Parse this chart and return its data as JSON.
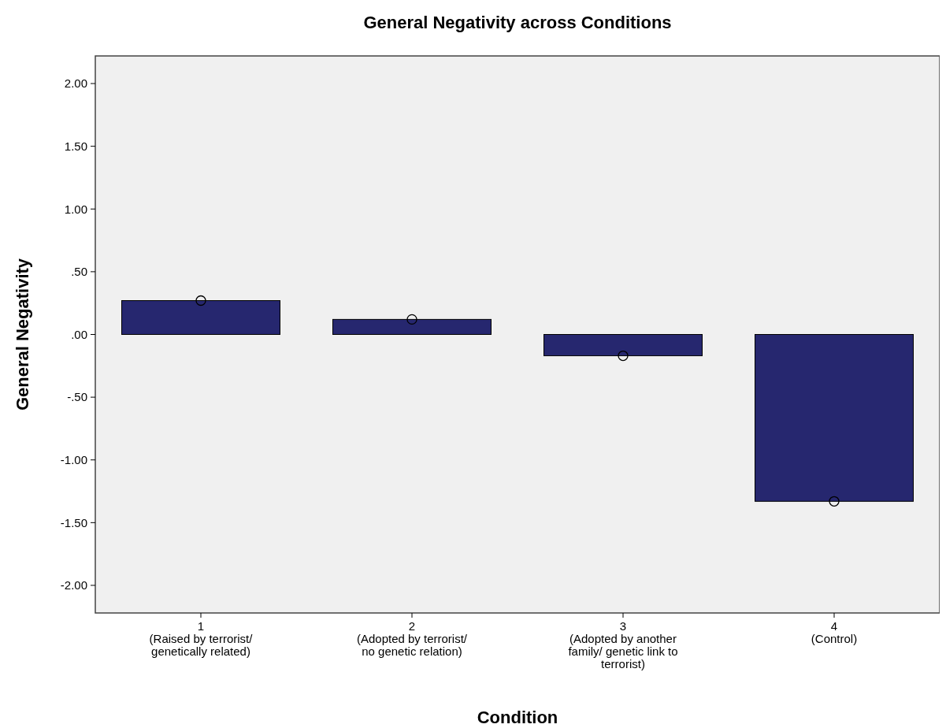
{
  "chart_data": {
    "type": "bar",
    "title": "General Negativity across Conditions",
    "xlabel": "Condition",
    "ylabel": "General Negativity",
    "categories": [
      "1\n(Raised by terrorist/\ngenetically related)",
      "2\n(Adopted by terrorist/\nno genetic relation)",
      "3\n(Adopted by another\nfamily/ genetic link to\nterrorist)",
      "4\n(Control)"
    ],
    "series": [
      {
        "color": "#26276f",
        "values": [
          0.27,
          0.12,
          -0.17,
          -1.33
        ]
      },
      {
        "type": "scatter",
        "color": "#000000",
        "marker": "circle",
        "x": [
          "1\n(Raised by terrorist/\ngenetically related)",
          "2\n(Adopted by terrorist/\nno genetic relation)",
          "3\n(Adopted by another\nfamily/ genetic link to\nterrorist)",
          "4\n(Control)"
        ],
        "values": [
          0.27,
          0.12,
          -0.17,
          -1.33
        ]
      }
    ],
    "ylim": [
      -2.22,
      2.22
    ],
    "yticks": [
      {
        "value": -2,
        "label": "-2.00"
      },
      {
        "value": -1.5,
        "label": "-1.50"
      },
      {
        "value": -1,
        "label": "-1.00"
      },
      {
        "value": -0.5,
        "label": "-.50"
      },
      {
        "value": 0,
        "label": ".00"
      },
      {
        "value": 0.5,
        "label": ".50"
      },
      {
        "value": 1,
        "label": "1.00"
      },
      {
        "value": 1.5,
        "label": "1.50"
      },
      {
        "value": 2,
        "label": "2.00"
      }
    ],
    "grid": false
  }
}
